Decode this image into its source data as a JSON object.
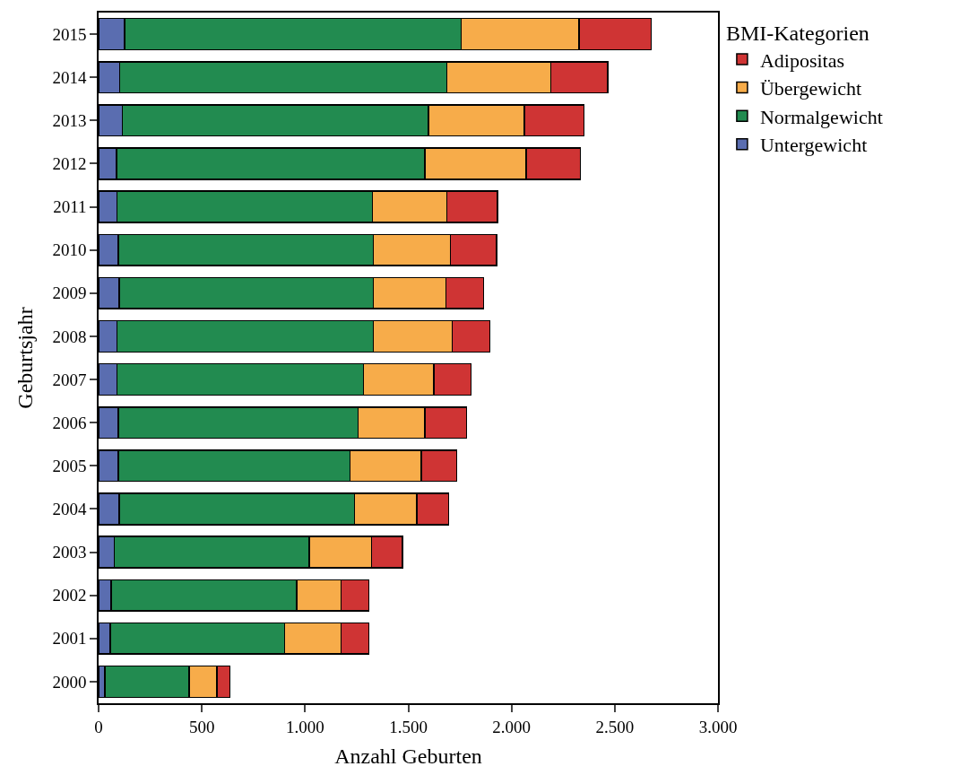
{
  "chart_data": {
    "type": "bar",
    "orientation": "horizontal",
    "stacked": true,
    "xlabel": "Anzahl Geburten",
    "ylabel": "Geburtsjahr",
    "legend_title": "BMI-Kategorien",
    "legend": "top right",
    "categories": [
      "2015",
      "2014",
      "2013",
      "2012",
      "2011",
      "2010",
      "2009",
      "2008",
      "2007",
      "2006",
      "2005",
      "2004",
      "2003",
      "2002",
      "2001",
      "2000"
    ],
    "xlim": [
      0,
      3000
    ],
    "xticks": [
      0,
      500,
      {
        "value": 1000,
        "label": "1.000"
      },
      {
        "value": 1500,
        "label": "1.500"
      },
      {
        "value": 2000,
        "label": "2.000"
      },
      {
        "value": 2500,
        "label": "2.500"
      },
      {
        "value": 3000,
        "label": "3.000"
      }
    ],
    "series": [
      {
        "name": "Untergewicht",
        "color": "#5a6db0",
        "values": [
          125,
          103,
          116,
          86,
          90,
          95,
          99,
          90,
          90,
          95,
          95,
          99,
          77,
          60,
          56,
          30
        ]
      },
      {
        "name": "Normalgewicht",
        "color": "#228b50",
        "values": [
          1631,
          1584,
          1481,
          1494,
          1236,
          1235,
          1231,
          1240,
          1193,
          1162,
          1123,
          1141,
          943,
          900,
          844,
          409
        ]
      },
      {
        "name": "Übergewicht",
        "color": "#f7ac4a",
        "values": [
          572,
          504,
          465,
          490,
          361,
          374,
          353,
          383,
          340,
          323,
          344,
          301,
          301,
          215,
          275,
          133
        ]
      },
      {
        "name": "Adipositas",
        "color": "#cf3434",
        "values": [
          349,
          275,
          288,
          263,
          245,
          224,
          181,
          181,
          180,
          202,
          173,
          155,
          151,
          133,
          133,
          65
        ]
      }
    ]
  }
}
